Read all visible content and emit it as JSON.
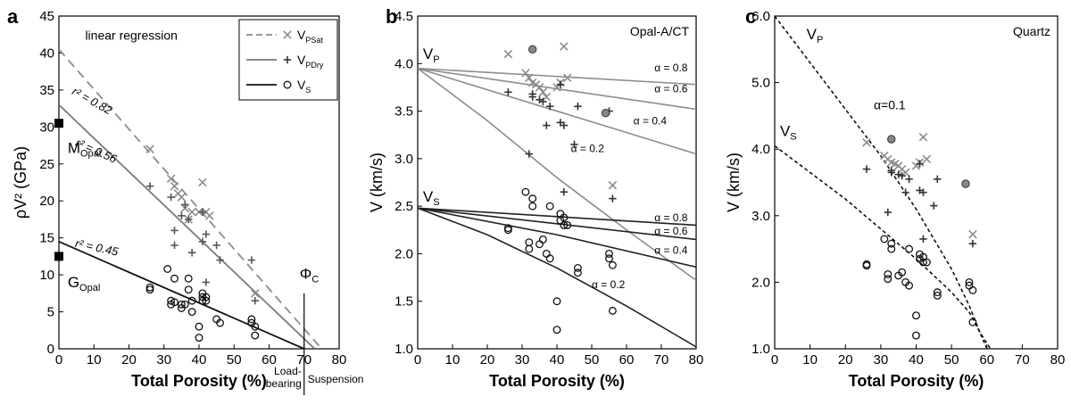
{
  "chart_data": [
    {
      "type": "scatter",
      "panel_label": "a",
      "xlabel": "Total Porosity (%)",
      "ylabel": "ρV² (GPa)",
      "xlim": [
        0,
        80
      ],
      "ylim": [
        0,
        45
      ],
      "xticks": [
        0,
        10,
        20,
        30,
        40,
        50,
        60,
        70,
        80
      ],
      "yticks": [
        0,
        5,
        10,
        15,
        20,
        25,
        30,
        35,
        40,
        45
      ],
      "legend": {
        "position": "top-right",
        "entries": [
          {
            "key": "psat",
            "main": "V",
            "sub": "PSat",
            "marker": "x",
            "line": "dashed",
            "color": "#8c8c8c"
          },
          {
            "key": "pdry",
            "main": "V",
            "sub": "PDry",
            "marker": "+",
            "line": "solid",
            "color": "#7a7a7a"
          },
          {
            "key": "s",
            "main": "V",
            "sub": "S",
            "marker": "o",
            "line": "solid",
            "color": "#111111"
          }
        ]
      },
      "annotations": {
        "regression": "linear regression",
        "r2_psat": "r² = 0.82",
        "r2_pdry": "r² = 0.56",
        "r2_s": "r² = 0.45",
        "m_opal_main": "M",
        "m_opal_sub": "Opal",
        "g_opal_main": "G",
        "g_opal_sub": "Opal",
        "phi_c_main": "Φ",
        "phi_c_sub": "C",
        "load_bearing_1": "Load-",
        "load_bearing_2": "bearing",
        "suspension": "Suspension"
      },
      "reference_points": [
        {
          "name": "M_Opal",
          "x": 0,
          "y": 30.5
        },
        {
          "name": "G_Opal",
          "x": 0,
          "y": 12.5
        }
      ],
      "phi_c": 70,
      "regression_lines": [
        {
          "series": "psat",
          "x": [
            0,
            75
          ],
          "y": [
            40.5,
            0
          ],
          "style": "dashed",
          "color": "#8c8c8c"
        },
        {
          "series": "pdry",
          "x": [
            0,
            73
          ],
          "y": [
            33,
            0
          ],
          "style": "solid",
          "color": "#7a7a7a"
        },
        {
          "series": "s",
          "x": [
            0,
            70
          ],
          "y": [
            14.5,
            0
          ],
          "style": "solid",
          "color": "#111111"
        }
      ],
      "series": [
        {
          "key": "psat",
          "marker": "x",
          "color": "#8c8c8c",
          "x": [
            26,
            32,
            33,
            34,
            35,
            36,
            37,
            38,
            40,
            41,
            42,
            43,
            56
          ],
          "y": [
            27,
            23,
            22,
            21,
            20.5,
            19,
            17.5,
            18.5,
            18.5,
            22.5,
            18.5,
            18,
            7.5
          ]
        },
        {
          "key": "pdry",
          "marker": "+",
          "color": "#555555",
          "x": [
            26,
            32,
            33,
            33,
            35,
            36,
            37,
            38,
            41,
            41,
            42,
            42,
            45,
            46,
            55,
            56
          ],
          "y": [
            22,
            20.5,
            16,
            14,
            18,
            19.5,
            17.5,
            13,
            18.5,
            14.5,
            15.5,
            9,
            14,
            12,
            12,
            6.5
          ]
        },
        {
          "key": "s",
          "marker": "o",
          "color": "#111111",
          "x": [
            26,
            26,
            31,
            32,
            32,
            33,
            33,
            35,
            35,
            36,
            37,
            37,
            38,
            38,
            40,
            40,
            41,
            41,
            41,
            42,
            42,
            45,
            46,
            55,
            55,
            56,
            56
          ],
          "y": [
            8.3,
            8,
            10.8,
            6.5,
            6,
            6.3,
            9.5,
            6,
            5.5,
            6,
            9.5,
            8,
            6.5,
            5,
            3,
            1.5,
            7.5,
            7,
            6.5,
            7,
            6.5,
            4,
            3.5,
            4,
            3.5,
            3,
            1.8
          ]
        }
      ]
    },
    {
      "type": "line",
      "panel_label": "b",
      "xlabel": "Total Porosity (%)",
      "ylabel": "V (km/s)",
      "xlim": [
        0,
        80
      ],
      "ylim": [
        1.0,
        4.5
      ],
      "xticks": [
        0,
        10,
        20,
        30,
        40,
        50,
        60,
        70,
        80
      ],
      "yticks": [
        1.0,
        1.5,
        2.0,
        2.5,
        3.0,
        3.5,
        4.0,
        4.5
      ],
      "inset_label": "Opal-A/CT",
      "vp_label_main": "V",
      "vp_label_sub": "P",
      "vs_label_main": "V",
      "vs_label_sub": "S",
      "model_curves": [
        {
          "wave": "P",
          "label": "α = 0.8",
          "x": [
            0,
            80
          ],
          "y": [
            3.95,
            3.78
          ],
          "color": "#8c8c8c"
        },
        {
          "wave": "P",
          "label": "α = 0.6",
          "x": [
            0,
            80
          ],
          "y": [
            3.95,
            3.52
          ],
          "color": "#8c8c8c"
        },
        {
          "wave": "P",
          "label": "α = 0.4",
          "x": [
            0,
            80
          ],
          "y": [
            3.95,
            3.05
          ],
          "color": "#8c8c8c"
        },
        {
          "wave": "P",
          "label": "α = 0.2",
          "x": [
            0,
            20,
            40,
            60,
            80
          ],
          "y": [
            3.95,
            3.4,
            2.8,
            2.25,
            1.72
          ],
          "color": "#8c8c8c"
        },
        {
          "wave": "S",
          "label": "α = 0.8",
          "x": [
            0,
            80
          ],
          "y": [
            2.48,
            2.3
          ],
          "color": "#222222"
        },
        {
          "wave": "S",
          "label": "α = 0.6",
          "x": [
            0,
            80
          ],
          "y": [
            2.48,
            2.15
          ],
          "color": "#222222"
        },
        {
          "wave": "S",
          "label": "α = 0.4",
          "x": [
            0,
            40,
            80
          ],
          "y": [
            2.48,
            2.2,
            1.86
          ],
          "color": "#222222"
        },
        {
          "wave": "S",
          "label": "α = 0.2",
          "x": [
            0,
            20,
            40,
            60,
            80
          ],
          "y": [
            2.48,
            2.2,
            1.85,
            1.45,
            1.02
          ],
          "color": "#222222"
        }
      ],
      "series": [
        {
          "key": "psat",
          "marker": "x",
          "color": "#8c8c8c",
          "x": [
            26,
            31,
            32,
            33,
            34,
            35,
            36,
            37,
            40,
            41,
            42,
            43,
            56
          ],
          "y": [
            4.1,
            3.9,
            3.85,
            3.8,
            3.78,
            3.75,
            3.7,
            3.65,
            3.75,
            3.8,
            4.18,
            3.85,
            2.72
          ]
        },
        {
          "key": "pdry",
          "marker": "+",
          "color": "#333333",
          "x": [
            26,
            32,
            33,
            33,
            35,
            36,
            37,
            38,
            41,
            41,
            42,
            42,
            45,
            46,
            55,
            56
          ],
          "y": [
            3.7,
            3.05,
            3.68,
            3.65,
            3.62,
            3.6,
            3.35,
            3.55,
            3.38,
            3.78,
            3.35,
            2.65,
            3.15,
            3.55,
            3.5,
            2.58
          ]
        },
        {
          "key": "s",
          "marker": "o",
          "color": "#111111",
          "x": [
            26,
            26,
            31,
            32,
            32,
            33,
            33,
            35,
            36,
            37,
            38,
            38,
            40,
            40,
            41,
            41,
            42,
            42,
            43,
            46,
            46,
            55,
            55,
            56,
            56
          ],
          "y": [
            2.25,
            2.27,
            2.65,
            2.12,
            2.05,
            2.58,
            2.5,
            2.1,
            2.15,
            2.0,
            2.5,
            1.95,
            1.5,
            1.2,
            2.42,
            2.35,
            2.38,
            2.3,
            2.3,
            1.85,
            1.8,
            1.95,
            2.0,
            1.88,
            1.4
          ]
        },
        {
          "key": "filled",
          "marker": "filled-o",
          "color": "#888888",
          "x": [
            33,
            54
          ],
          "y": [
            4.15,
            3.48
          ]
        }
      ]
    },
    {
      "type": "scatter",
      "panel_label": "c",
      "xlabel": "Total Porosity (%)",
      "ylabel": "V (km/s)",
      "xlim": [
        0,
        80
      ],
      "ylim": [
        1.0,
        6.0
      ],
      "xticks": [
        0,
        10,
        20,
        30,
        40,
        50,
        60,
        70,
        80
      ],
      "yticks": [
        1.0,
        2.0,
        3.0,
        4.0,
        5.0,
        6.0
      ],
      "inset_label": "Quartz",
      "alpha_label": "α=0.1",
      "vp_label_main": "V",
      "vp_label_sub": "P",
      "vs_label_main": "V",
      "vs_label_sub": "S",
      "model_curves": [
        {
          "wave": "P",
          "x": [
            0,
            10,
            20,
            30,
            40,
            50,
            55,
            58,
            61
          ],
          "y": [
            6.0,
            5.3,
            4.6,
            3.9,
            3.1,
            2.2,
            1.65,
            1.25,
            1.0
          ],
          "color": "#111111"
        },
        {
          "wave": "S",
          "x": [
            0,
            10,
            20,
            30,
            40,
            50,
            55,
            58,
            60
          ],
          "y": [
            4.05,
            3.65,
            3.25,
            2.8,
            2.35,
            1.85,
            1.55,
            1.25,
            1.0
          ],
          "color": "#111111"
        }
      ],
      "series": [
        {
          "key": "psat",
          "marker": "x",
          "color": "#8c8c8c",
          "x": [
            26,
            31,
            32,
            33,
            34,
            35,
            36,
            37,
            40,
            41,
            42,
            43,
            56
          ],
          "y": [
            4.1,
            3.9,
            3.85,
            3.8,
            3.78,
            3.75,
            3.7,
            3.65,
            3.75,
            3.8,
            4.18,
            3.85,
            2.72
          ]
        },
        {
          "key": "pdry",
          "marker": "+",
          "color": "#333333",
          "x": [
            26,
            32,
            33,
            33,
            35,
            36,
            37,
            38,
            41,
            41,
            42,
            42,
            45,
            46,
            56
          ],
          "y": [
            3.7,
            3.05,
            3.68,
            3.65,
            3.62,
            3.6,
            3.35,
            3.55,
            3.38,
            3.78,
            3.35,
            2.65,
            3.15,
            3.55,
            2.58
          ]
        },
        {
          "key": "s",
          "marker": "o",
          "color": "#111111",
          "x": [
            26,
            26,
            31,
            32,
            32,
            33,
            33,
            35,
            36,
            37,
            38,
            38,
            40,
            40,
            41,
            41,
            42,
            42,
            43,
            46,
            46,
            55,
            55,
            56,
            56
          ],
          "y": [
            2.25,
            2.27,
            2.65,
            2.12,
            2.05,
            2.58,
            2.5,
            2.1,
            2.15,
            2.0,
            2.5,
            1.95,
            1.5,
            1.2,
            2.42,
            2.35,
            2.38,
            2.3,
            2.3,
            1.85,
            1.8,
            1.95,
            2.0,
            1.88,
            1.4
          ]
        },
        {
          "key": "filled",
          "marker": "filled-o",
          "color": "#888888",
          "x": [
            33,
            54
          ],
          "y": [
            4.15,
            3.48
          ]
        }
      ]
    }
  ]
}
